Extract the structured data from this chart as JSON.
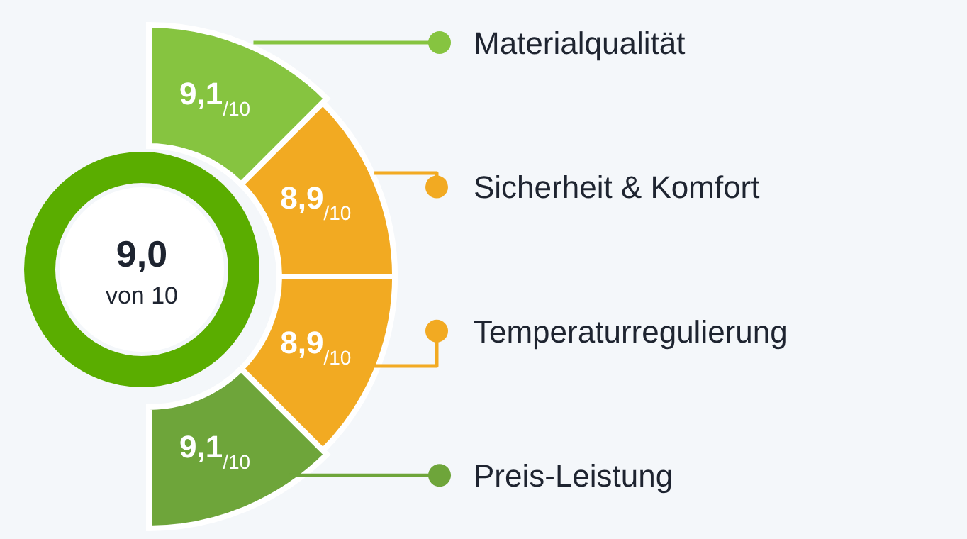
{
  "chart_data": {
    "type": "other",
    "categories": [
      "Materialqualität",
      "Sicherheit & Komfort",
      "Temperaturregulierung",
      "Preis-Leistung"
    ],
    "values": [
      9.1,
      8.9,
      8.9,
      9.1
    ],
    "value_labels": [
      "9,1$_{/10}$",
      "8,9$_{/10}$",
      "8,9$_{/10}$",
      "9,1$_{/10}$"
    ],
    "colors": [
      "#86c440",
      "#f2aa22",
      "#f2aa22",
      "#6ea53a"
    ],
    "annotations": [
      "9,0",
      "von 10"
    ]
  }
}
